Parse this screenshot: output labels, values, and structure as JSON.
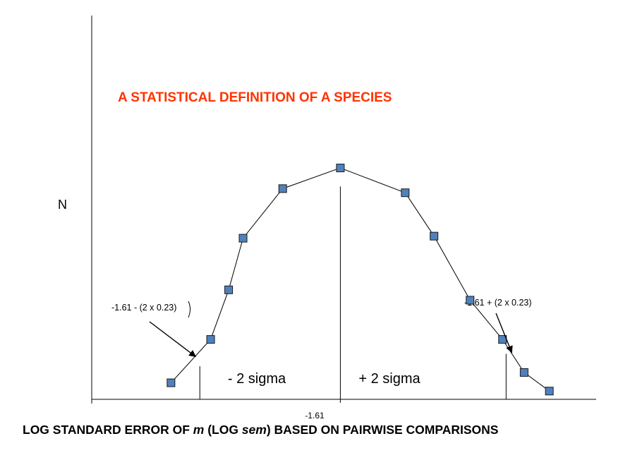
{
  "chart_data": {
    "type": "line",
    "title": "A STATISTICAL DEFINITION OF A SPECIES",
    "xlabel": {
      "before": "LOG STANDARD ERROR OF ",
      "italic1": "m",
      "middle": " (LOG ",
      "italic2": "sem",
      "after": ") BASED ON PAIRWISE COMPARISONS"
    },
    "ylabel": "N",
    "xlim": [
      -2.3,
      -0.9
    ],
    "ylim": [
      0,
      1.25
    ],
    "x_tick": {
      "value": -1.61,
      "label": "-1.61"
    },
    "series": [
      {
        "x": [
          -2.08,
          -1.97,
          -1.92,
          -1.88,
          -1.77,
          -1.61,
          -1.43,
          -1.35,
          -1.25,
          -1.16,
          -1.1,
          -1.03
        ],
        "y": [
          0.08,
          0.29,
          0.53,
          0.78,
          1.02,
          1.12,
          1.0,
          0.79,
          0.48,
          0.29,
          0.13,
          0.04
        ]
      }
    ],
    "marker_color": "#4f81bd",
    "marker_edge": "#1a1a1a",
    "vlines": [
      {
        "x": -2.0,
        "y_top": 0.16
      },
      {
        "x": -1.61,
        "y_top": 1.03
      },
      {
        "x": -1.15,
        "y_top": 0.22
      }
    ],
    "regions": [
      "- 2 sigma",
      "+ 2 sigma"
    ],
    "annotations": [
      {
        "text": "-1.61 - (2 x 0.23)",
        "arrow_to_x": -2.0,
        "arrow_to_y": 0.2
      },
      {
        "text": "-1.61 + (2 x 0.23)",
        "arrow_to_x": -1.15,
        "arrow_to_y": 0.22
      }
    ]
  }
}
